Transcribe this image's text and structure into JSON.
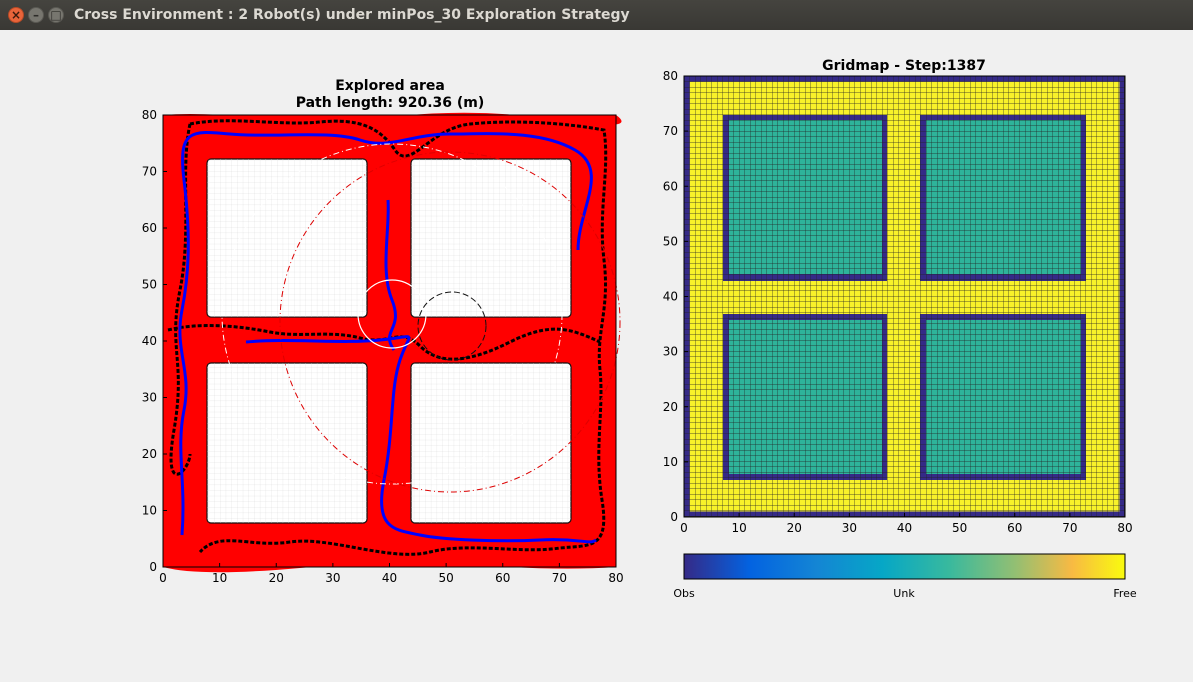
{
  "window": {
    "title": "Cross Environment : 2 Robot(s) under minPos_30 Exploration Strategy",
    "close_glyph": "×",
    "minimize_glyph": "–",
    "maximize_glyph": "□"
  },
  "left_plot": {
    "title_line1": "Explored area",
    "title_line2": "Path length: 920.36 (m)",
    "x_ticks": [
      "0",
      "10",
      "20",
      "30",
      "40",
      "50",
      "60",
      "70",
      "80"
    ],
    "y_ticks": [
      "0",
      "10",
      "20",
      "30",
      "40",
      "50",
      "60",
      "70",
      "80"
    ],
    "colors": {
      "explored": "#ff0000",
      "robot1_path": "#0000ff",
      "robot2_path": "#000000",
      "sensor_circle_white": "#ffffff",
      "sensor_circle_red": "#dd0000"
    }
  },
  "right_plot": {
    "title": "Gridmap - Step:1387",
    "x_ticks": [
      "0",
      "10",
      "20",
      "30",
      "40",
      "50",
      "60",
      "70",
      "80"
    ],
    "y_ticks": [
      "0",
      "10",
      "20",
      "30",
      "40",
      "50",
      "60",
      "70",
      "80"
    ],
    "colors": {
      "free": "#f8f22a",
      "unknown": "#2eb39a",
      "obstacle": "#352a87"
    }
  },
  "colorbar": {
    "labels": [
      "Obs",
      "Unk",
      "Free"
    ]
  }
}
